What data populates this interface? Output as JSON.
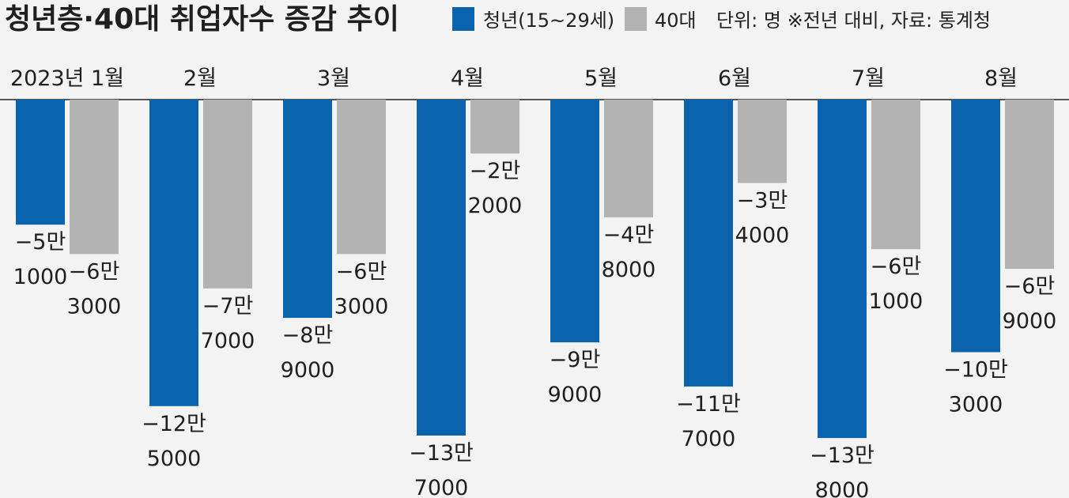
{
  "chart_data": {
    "type": "bar",
    "title": "청년층·40대 취업자수 증감 추이",
    "unit_note": "단위: 명 ※전년 대비, 자료: 통계청",
    "categories": [
      "2023년 1월",
      "2월",
      "3월",
      "4월",
      "5월",
      "6월",
      "7월",
      "8월"
    ],
    "series": [
      {
        "name": "청년(15~29세)",
        "color": "#0a64ad",
        "values": [
          -51000,
          -125000,
          -89000,
          -137000,
          -99000,
          -117000,
          -138000,
          -103000
        ],
        "labels": [
          [
            "−5만",
            "1000"
          ],
          [
            "−12만",
            "5000"
          ],
          [
            "−8만",
            "9000"
          ],
          [
            "−13만",
            "7000"
          ],
          [
            "−9만",
            "9000"
          ],
          [
            "−11만",
            "7000"
          ],
          [
            "−13만",
            "8000"
          ],
          [
            "−10만",
            "3000"
          ]
        ]
      },
      {
        "name": "40대",
        "color": "#b3b3b3",
        "values": [
          -63000,
          -77000,
          -63000,
          -22000,
          -48000,
          -34000,
          -61000,
          -69000
        ],
        "labels": [
          [
            "−6만",
            "3000"
          ],
          [
            "−7만",
            "7000"
          ],
          [
            "−6만",
            "3000"
          ],
          [
            "−2만",
            "2000"
          ],
          [
            "−4만",
            "8000"
          ],
          [
            "−3만",
            "4000"
          ],
          [
            "−6만",
            "1000"
          ],
          [
            "−6만",
            "9000"
          ]
        ]
      }
    ],
    "ylim": [
      -140000,
      0
    ],
    "grid": false,
    "legend": "top-right"
  }
}
